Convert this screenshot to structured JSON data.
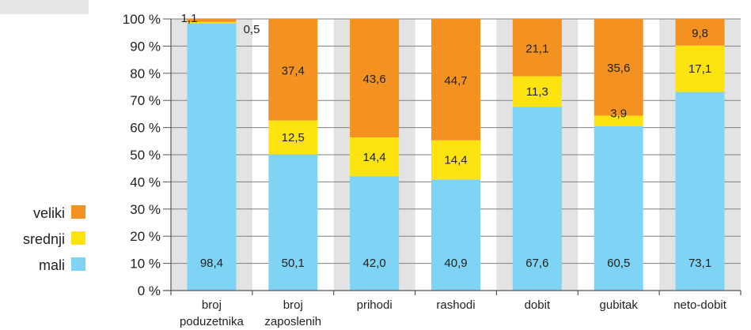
{
  "chart_data": {
    "type": "bar",
    "stacked": true,
    "categories": [
      [
        "broj",
        "poduzetnika"
      ],
      [
        "broj",
        "zaposlenih"
      ],
      [
        "prihodi"
      ],
      [
        "rashodi"
      ],
      [
        "dobit"
      ],
      [
        "gubitak"
      ],
      [
        "neto-dobit"
      ]
    ],
    "series": [
      {
        "name": "mali",
        "color": "#7fd3f4",
        "values": [
          98.4,
          50.1,
          42.0,
          40.9,
          67.6,
          60.5,
          73.1
        ]
      },
      {
        "name": "srednji",
        "color": "#fde411",
        "values": [
          0.5,
          12.5,
          14.4,
          14.4,
          11.3,
          3.9,
          17.1
        ]
      },
      {
        "name": "veliki",
        "color": "#f39220",
        "values": [
          1.1,
          37.4,
          43.6,
          44.7,
          21.1,
          35.6,
          9.8
        ]
      }
    ],
    "labels": {
      "mali": [
        "98,4",
        "50,1",
        "42,0",
        "40,9",
        "67,6",
        "60,5",
        "73,1"
      ],
      "srednji": [
        "0,5",
        "12,5",
        "14,4",
        "14,4",
        "11,3",
        "3,9",
        "17,1"
      ],
      "veliki": [
        "1,1",
        "37,4",
        "43,6",
        "44,7",
        "21,1",
        "35,6",
        "9,8"
      ]
    },
    "yticks": [
      "0 %",
      "10 %",
      "20 %",
      "30 %",
      "40 %",
      "50 %",
      "60 %",
      "70 %",
      "80 %",
      "90 %",
      "100 %"
    ],
    "ylim": [
      0,
      100
    ],
    "grid": true,
    "legend_position": "left",
    "legend": [
      {
        "name": "veliki",
        "color": "#f39220"
      },
      {
        "name": "srednji",
        "color": "#fde411"
      },
      {
        "name": "mali",
        "color": "#7fd3f4"
      }
    ],
    "band_color": "#e3e3e3",
    "grid_color": "#7f7f7f"
  }
}
